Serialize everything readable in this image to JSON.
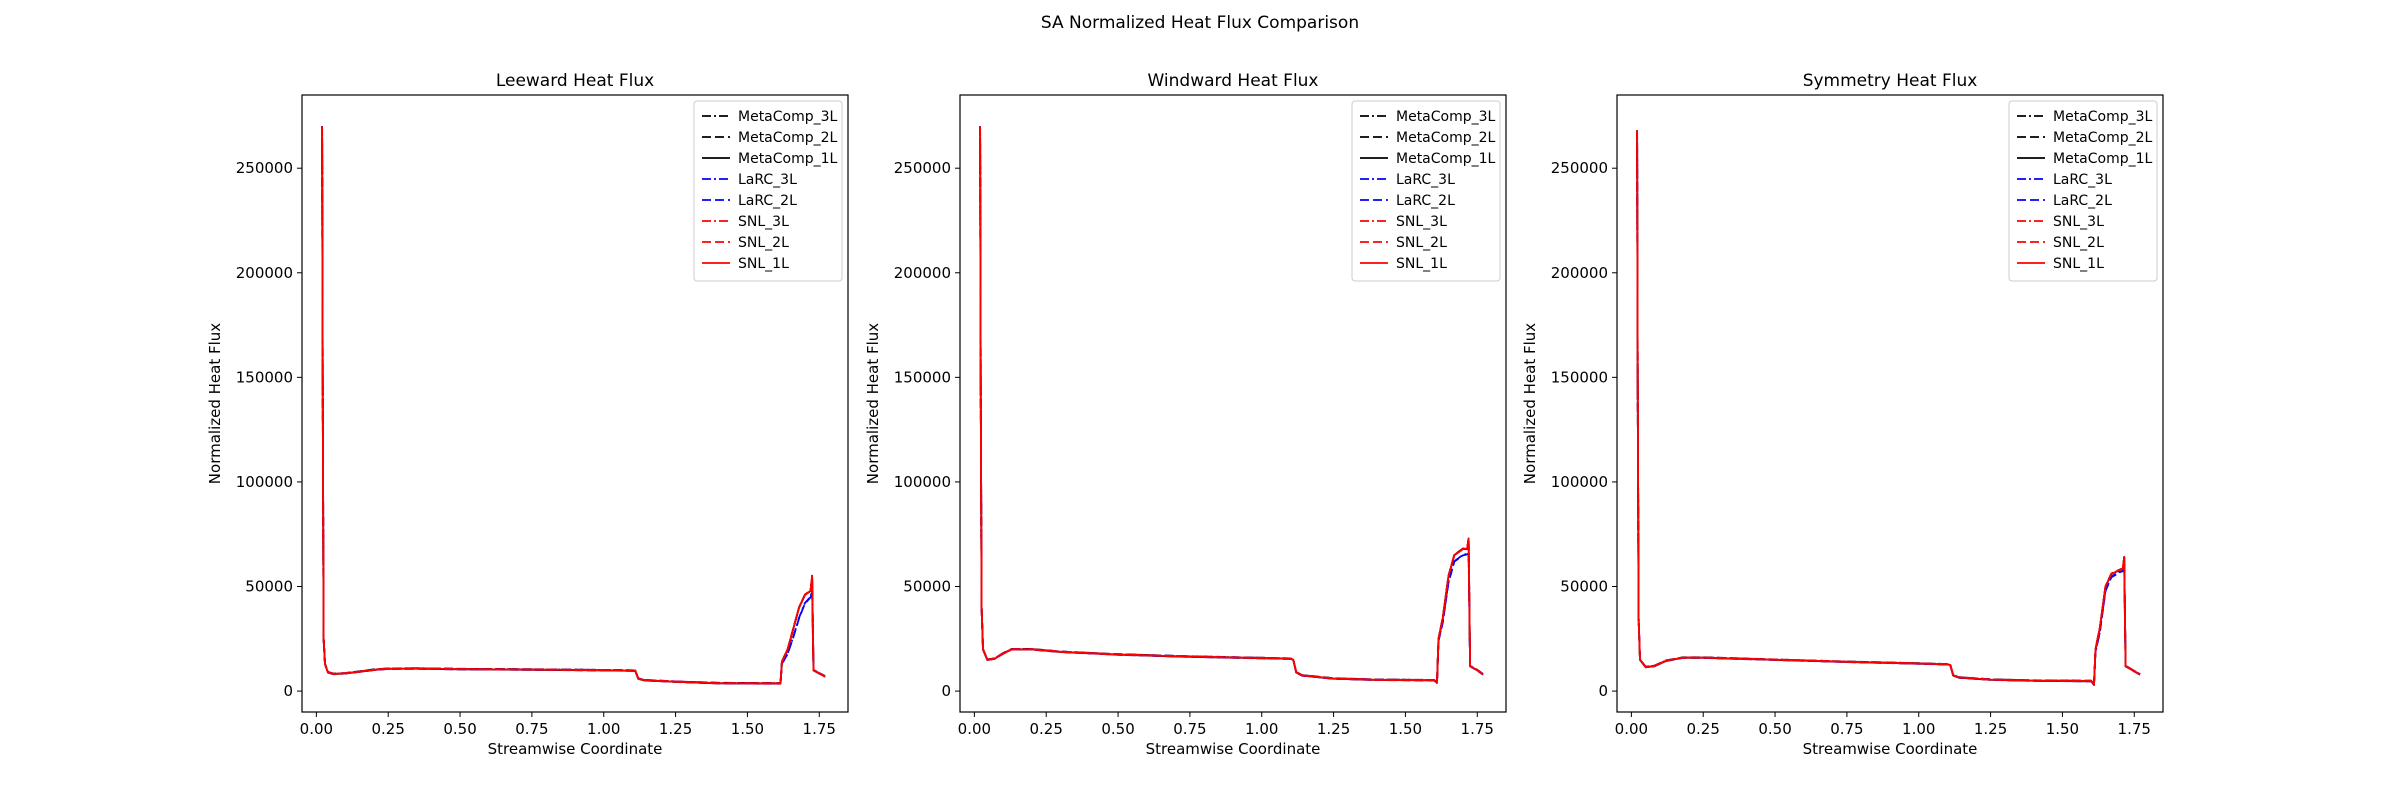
{
  "figure": {
    "suptitle": "SA Normalized Heat Flux Comparison"
  },
  "chart_data": [
    {
      "type": "line",
      "title": "Leeward Heat Flux",
      "xlabel": "Streamwise Coordinate",
      "ylabel": "Normalized Heat Flux",
      "xlim": [
        -0.05,
        1.85
      ],
      "ylim": [
        -10000,
        285000
      ],
      "xticks": [
        "0.00",
        "0.25",
        "0.50",
        "0.75",
        "1.00",
        "1.25",
        "1.50",
        "1.75"
      ],
      "yticks": [
        "0",
        "50000",
        "100000",
        "150000",
        "200000",
        "250000"
      ],
      "grid": false,
      "legend": "top-right",
      "series": [
        {
          "name": "MetaComp_3L",
          "color": "#000000",
          "dash": "dashdot"
        },
        {
          "name": "MetaComp_2L",
          "color": "#000000",
          "dash": "dashed"
        },
        {
          "name": "MetaComp_1L",
          "color": "#000000",
          "dash": "solid"
        },
        {
          "name": "LaRC_3L",
          "color": "#0000ff",
          "dash": "dashdot"
        },
        {
          "name": "LaRC_2L",
          "color": "#0000ff",
          "dash": "dashed"
        },
        {
          "name": "SNL_3L",
          "color": "#ff0000",
          "dash": "dashdot"
        },
        {
          "name": "SNL_2L",
          "color": "#ff0000",
          "dash": "dashed"
        },
        {
          "name": "SNL_1L",
          "color": "#ff0000",
          "dash": "solid"
        }
      ],
      "profile": [
        [
          0.02,
          270000
        ],
        [
          0.022,
          150000
        ],
        [
          0.025,
          25000
        ],
        [
          0.03,
          13000
        ],
        [
          0.04,
          9000
        ],
        [
          0.06,
          8200
        ],
        [
          0.1,
          8500
        ],
        [
          0.15,
          9300
        ],
        [
          0.2,
          10200
        ],
        [
          0.25,
          10700
        ],
        [
          0.35,
          10800
        ],
        [
          0.5,
          10500
        ],
        [
          0.75,
          10300
        ],
        [
          1.0,
          10000
        ],
        [
          1.1,
          9800
        ],
        [
          1.11,
          9700
        ],
        [
          1.12,
          6000
        ],
        [
          1.14,
          5200
        ],
        [
          1.25,
          4500
        ],
        [
          1.4,
          3800
        ],
        [
          1.55,
          3700
        ],
        [
          1.615,
          3700
        ],
        [
          1.62,
          14000
        ],
        [
          1.64,
          20000
        ],
        [
          1.66,
          30000
        ],
        [
          1.68,
          40000
        ],
        [
          1.7,
          46000
        ],
        [
          1.72,
          48000
        ],
        [
          1.725,
          55000
        ],
        [
          1.73,
          10000
        ],
        [
          1.75,
          8500
        ],
        [
          1.77,
          7000
        ]
      ],
      "blue_profile": [
        [
          1.615,
          3700
        ],
        [
          1.62,
          13000
        ],
        [
          1.64,
          18000
        ],
        [
          1.66,
          26000
        ],
        [
          1.68,
          35000
        ],
        [
          1.7,
          42000
        ],
        [
          1.72,
          45000
        ],
        [
          1.725,
          48000
        ],
        [
          1.73,
          10000
        ],
        [
          1.75,
          8500
        ],
        [
          1.77,
          7000
        ]
      ]
    },
    {
      "type": "line",
      "title": "Windward Heat Flux",
      "xlabel": "Streamwise Coordinate",
      "ylabel": "Normalized Heat Flux",
      "xlim": [
        -0.05,
        1.85
      ],
      "ylim": [
        -10000,
        285000
      ],
      "xticks": [
        "0.00",
        "0.25",
        "0.50",
        "0.75",
        "1.00",
        "1.25",
        "1.50",
        "1.75"
      ],
      "yticks": [
        "0",
        "50000",
        "100000",
        "150000",
        "200000",
        "250000"
      ],
      "grid": false,
      "legend": "top-right",
      "series": [
        {
          "name": "MetaComp_3L",
          "color": "#000000",
          "dash": "dashdot"
        },
        {
          "name": "MetaComp_2L",
          "color": "#000000",
          "dash": "dashed"
        },
        {
          "name": "MetaComp_1L",
          "color": "#000000",
          "dash": "solid"
        },
        {
          "name": "LaRC_3L",
          "color": "#0000ff",
          "dash": "dashdot"
        },
        {
          "name": "LaRC_2L",
          "color": "#0000ff",
          "dash": "dashed"
        },
        {
          "name": "SNL_3L",
          "color": "#ff0000",
          "dash": "dashdot"
        },
        {
          "name": "SNL_2L",
          "color": "#ff0000",
          "dash": "dashed"
        },
        {
          "name": "SNL_1L",
          "color": "#ff0000",
          "dash": "solid"
        }
      ],
      "profile": [
        [
          0.02,
          270000
        ],
        [
          0.022,
          150000
        ],
        [
          0.025,
          40000
        ],
        [
          0.03,
          20000
        ],
        [
          0.045,
          15000
        ],
        [
          0.07,
          15500
        ],
        [
          0.1,
          18000
        ],
        [
          0.13,
          20000
        ],
        [
          0.2,
          20000
        ],
        [
          0.3,
          18800
        ],
        [
          0.5,
          17500
        ],
        [
          0.75,
          16500
        ],
        [
          1.0,
          15800
        ],
        [
          1.1,
          15500
        ],
        [
          1.11,
          15000
        ],
        [
          1.12,
          9000
        ],
        [
          1.14,
          7500
        ],
        [
          1.25,
          6000
        ],
        [
          1.4,
          5400
        ],
        [
          1.6,
          5200
        ],
        [
          1.61,
          4000
        ],
        [
          1.615,
          25000
        ],
        [
          1.63,
          35000
        ],
        [
          1.65,
          55000
        ],
        [
          1.67,
          65000
        ],
        [
          1.7,
          68000
        ],
        [
          1.715,
          68000
        ],
        [
          1.72,
          73000
        ],
        [
          1.725,
          12000
        ],
        [
          1.75,
          10000
        ],
        [
          1.77,
          8000
        ]
      ],
      "blue_profile": [
        [
          1.61,
          4000
        ],
        [
          1.615,
          24000
        ],
        [
          1.63,
          33000
        ],
        [
          1.65,
          52000
        ],
        [
          1.67,
          62000
        ],
        [
          1.7,
          65000
        ],
        [
          1.715,
          65500
        ],
        [
          1.72,
          66000
        ],
        [
          1.725,
          12000
        ],
        [
          1.75,
          10000
        ],
        [
          1.77,
          8000
        ]
      ]
    },
    {
      "type": "line",
      "title": "Symmetry Heat Flux",
      "xlabel": "Streamwise Coordinate",
      "ylabel": "Normalized Heat Flux",
      "xlim": [
        -0.05,
        1.85
      ],
      "ylim": [
        -10000,
        285000
      ],
      "xticks": [
        "0.00",
        "0.25",
        "0.50",
        "0.75",
        "1.00",
        "1.25",
        "1.50",
        "1.75"
      ],
      "yticks": [
        "0",
        "50000",
        "100000",
        "150000",
        "200000",
        "250000"
      ],
      "grid": false,
      "legend": "top-right",
      "series": [
        {
          "name": "MetaComp_3L",
          "color": "#000000",
          "dash": "dashdot"
        },
        {
          "name": "MetaComp_2L",
          "color": "#000000",
          "dash": "dashed"
        },
        {
          "name": "MetaComp_1L",
          "color": "#000000",
          "dash": "solid"
        },
        {
          "name": "LaRC_3L",
          "color": "#0000ff",
          "dash": "dashdot"
        },
        {
          "name": "LaRC_2L",
          "color": "#0000ff",
          "dash": "dashed"
        },
        {
          "name": "SNL_3L",
          "color": "#ff0000",
          "dash": "dashdot"
        },
        {
          "name": "SNL_2L",
          "color": "#ff0000",
          "dash": "dashed"
        },
        {
          "name": "SNL_1L",
          "color": "#ff0000",
          "dash": "solid"
        }
      ],
      "profile": [
        [
          0.02,
          268000
        ],
        [
          0.022,
          150000
        ],
        [
          0.025,
          35000
        ],
        [
          0.03,
          15000
        ],
        [
          0.05,
          11500
        ],
        [
          0.08,
          12000
        ],
        [
          0.12,
          14500
        ],
        [
          0.18,
          16000
        ],
        [
          0.25,
          16000
        ],
        [
          0.5,
          15000
        ],
        [
          0.75,
          14000
        ],
        [
          1.0,
          13200
        ],
        [
          1.1,
          12800
        ],
        [
          1.11,
          12500
        ],
        [
          1.12,
          7500
        ],
        [
          1.14,
          6500
        ],
        [
          1.25,
          5500
        ],
        [
          1.4,
          5000
        ],
        [
          1.6,
          4800
        ],
        [
          1.61,
          3000
        ],
        [
          1.615,
          20000
        ],
        [
          1.63,
          30000
        ],
        [
          1.65,
          50000
        ],
        [
          1.67,
          56000
        ],
        [
          1.7,
          58000
        ],
        [
          1.71,
          58500
        ],
        [
          1.715,
          64000
        ],
        [
          1.72,
          12000
        ],
        [
          1.75,
          9500
        ],
        [
          1.77,
          8000
        ]
      ],
      "blue_profile": [
        [
          1.61,
          3000
        ],
        [
          1.615,
          19000
        ],
        [
          1.63,
          28000
        ],
        [
          1.65,
          48000
        ],
        [
          1.67,
          54500
        ],
        [
          1.7,
          57000
        ],
        [
          1.71,
          57500
        ],
        [
          1.715,
          60000
        ],
        [
          1.72,
          12000
        ],
        [
          1.75,
          9500
        ],
        [
          1.77,
          8000
        ]
      ]
    }
  ]
}
